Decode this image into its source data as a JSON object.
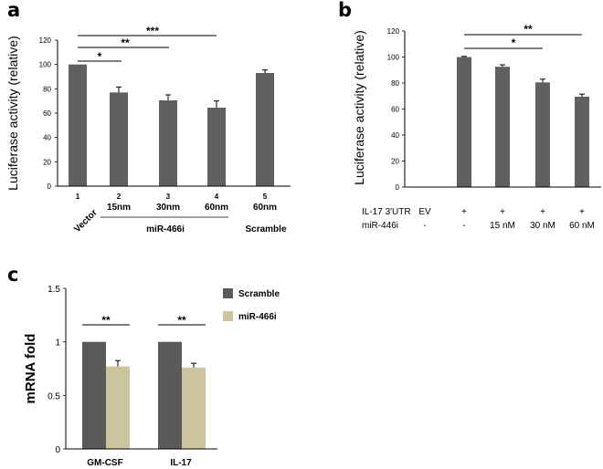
{
  "chart_data": [
    {
      "panel": "a",
      "type": "bar",
      "ylabel": "Luciferase activity (relative)",
      "ylim": [
        0,
        120
      ],
      "yticks": [
        0,
        20,
        40,
        60,
        80,
        100,
        120
      ],
      "categories": [
        "1",
        "2",
        "3",
        "4",
        "5"
      ],
      "category_labels": [
        "Vector",
        "15nm",
        "30nm",
        "60nm",
        "60nm"
      ],
      "group_labels": [
        "miR-466i",
        "Scramble"
      ],
      "values": [
        100,
        77,
        70.5,
        64.5,
        93
      ],
      "errors": [
        0,
        4.5,
        4.5,
        5.5,
        2.5
      ],
      "bar_color": "#606060",
      "significance": [
        "*",
        "**",
        "***"
      ]
    },
    {
      "panel": "b",
      "type": "bar",
      "ylabel": "Luciferase activity (relative)",
      "ylim": [
        0,
        120
      ],
      "yticks": [
        0,
        20,
        40,
        60,
        80,
        100,
        120
      ],
      "values": [
        0,
        100,
        92.5,
        80.5,
        69.5
      ],
      "errors": [
        0,
        0.5,
        1.5,
        2.5,
        2
      ],
      "bar_color": "#606060",
      "rows": [
        {
          "label": "IL-17 3'UTR",
          "values": [
            "EV",
            "+",
            "+",
            "+",
            "+"
          ]
        },
        {
          "label": "miR-446i",
          "values": [
            "-",
            "-",
            "15 nM",
            "30 nM",
            "60 nM"
          ]
        }
      ],
      "significance": [
        "*",
        "**"
      ]
    },
    {
      "panel": "c",
      "type": "bar",
      "ylabel": "mRNA fold",
      "ylim": [
        0,
        1.5
      ],
      "yticks": [
        "0",
        "0.5",
        "1",
        "1.5"
      ],
      "categories": [
        "GM-CSF",
        "IL-17"
      ],
      "series": [
        {
          "name": "Scramble",
          "values": [
            1.0,
            1.0
          ],
          "errors": [
            0,
            0
          ],
          "color": "#5a5a5a"
        },
        {
          "name": "miR-466i",
          "values": [
            0.77,
            0.76
          ],
          "errors": [
            0.055,
            0.04
          ],
          "color": "#cbc49c"
        }
      ],
      "significance": [
        "**",
        "**"
      ]
    }
  ]
}
